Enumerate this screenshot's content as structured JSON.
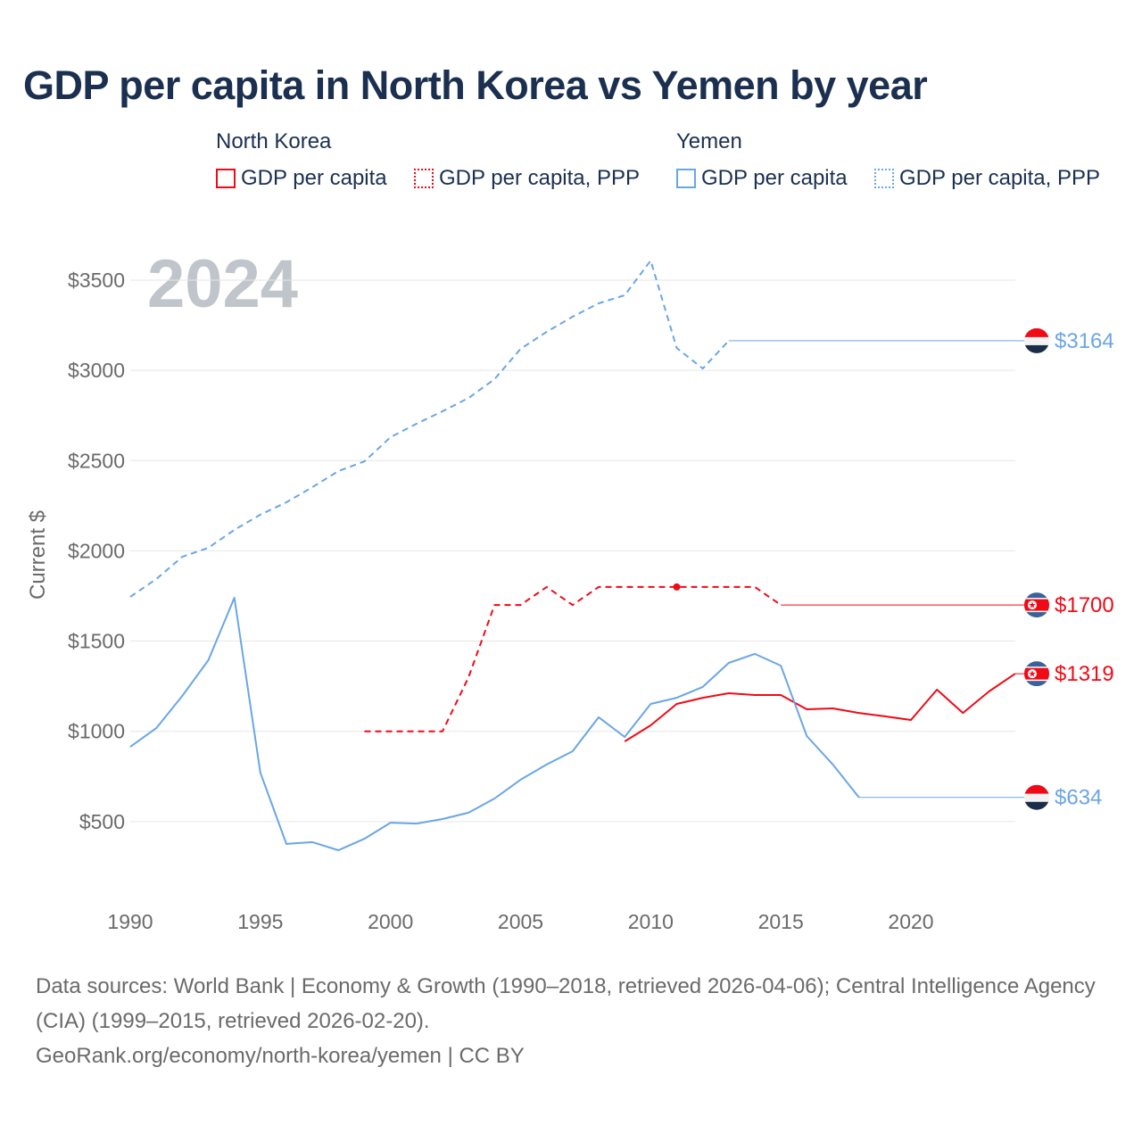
{
  "title": "GDP per capita in North Korea vs Yemen by year",
  "legend": {
    "groups": [
      {
        "name": "North Korea",
        "items": [
          "GDP per capita",
          "GDP per capita, PPP"
        ],
        "color": "#f00a16"
      },
      {
        "name": "Yemen",
        "items": [
          "GDP per capita",
          "GDP per capita, PPP"
        ],
        "color": "#6aa6e6"
      }
    ]
  },
  "chart_data": {
    "type": "line",
    "title": "GDP per capita in North Korea vs Yemen by year",
    "year_watermark": "2024",
    "ylabel": "Current $",
    "xlabel": "",
    "xlim": [
      1990,
      2024
    ],
    "ylim": [
      0,
      3700
    ],
    "x_ticks": [
      "1990",
      "1995",
      "2000",
      "2005",
      "2010",
      "2015",
      "2020"
    ],
    "y_ticks": [
      "$500",
      "$1000",
      "$1500",
      "$2000",
      "$2500",
      "$3000",
      "$3500"
    ],
    "grid": true,
    "series": [
      {
        "name": "Yemen GDP per capita, PPP",
        "country": "Yemen",
        "color": "#6aa6e6",
        "style": "dashed",
        "x": [
          1990,
          1991,
          1992,
          1993,
          1994,
          1995,
          1996,
          1997,
          1998,
          1999,
          2000,
          2001,
          2002,
          2003,
          2004,
          2005,
          2006,
          2007,
          2008,
          2009,
          2010,
          2011,
          2012,
          2013
        ],
        "values": [
          1745,
          1844,
          1967,
          2017,
          2116,
          2200,
          2269,
          2353,
          2442,
          2496,
          2630,
          2704,
          2773,
          2847,
          2951,
          3119,
          3213,
          3297,
          3371,
          3416,
          3608,
          3124,
          3010,
          3164
        ],
        "end_label": "$3164",
        "flag": "yemen"
      },
      {
        "name": "North Korea GDP per capita, PPP",
        "country": "North Korea",
        "color": "#f00a16",
        "style": "dashed",
        "x": [
          1999,
          2000,
          2001,
          2002,
          2003,
          2004,
          2005,
          2006,
          2007,
          2008,
          2009,
          2010,
          2011,
          2012,
          2013,
          2014,
          2015
        ],
        "values": [
          1000,
          1000,
          1000,
          1000,
          1300,
          1700,
          1700,
          1800,
          1700,
          1800,
          1800,
          1800,
          1800,
          1800,
          1800,
          1800,
          1700
        ],
        "marker_at": 2011,
        "end_label": "$1700",
        "flag": "north-korea"
      },
      {
        "name": "North Korea GDP per capita",
        "country": "North Korea",
        "color": "#f00a16",
        "style": "solid",
        "x": [
          2009,
          2010,
          2011,
          2012,
          2013,
          2014,
          2015,
          2016,
          2017,
          2018,
          2019,
          2020,
          2021,
          2022,
          2023,
          2024
        ],
        "values": [
          944,
          1033,
          1152,
          1186,
          1211,
          1201,
          1201,
          1122,
          1127,
          1102,
          1083,
          1063,
          1231,
          1102,
          1221,
          1319
        ],
        "end_label": "$1319",
        "flag": "north-korea"
      },
      {
        "name": "Yemen GDP per capita",
        "country": "Yemen",
        "color": "#6aa6e6",
        "style": "solid",
        "x": [
          1990,
          1991,
          1992,
          1993,
          1994,
          1995,
          1996,
          1997,
          1998,
          1999,
          2000,
          2001,
          2002,
          2003,
          2004,
          2005,
          2006,
          2007,
          2008,
          2009,
          2010,
          2011,
          2012,
          2013,
          2014,
          2015,
          2016,
          2017,
          2018
        ],
        "values": [
          914,
          1018,
          1196,
          1394,
          1740,
          771,
          376,
          386,
          341,
          405,
          494,
          489,
          514,
          549,
          628,
          732,
          816,
          890,
          1078,
          969,
          1152,
          1186,
          1246,
          1379,
          1429,
          1364,
          974,
          816,
          634
        ],
        "end_label": "$634",
        "flag": "yemen"
      }
    ]
  },
  "footer": {
    "sources": "Data sources: World Bank | Economy & Growth (1990–2018, retrieved 2026-04-06); Central Intelligence Agency (CIA) (1999–2015, retrieved 2026-02-20).",
    "credit": "GeoRank.org/economy/north-korea/yemen | CC BY"
  }
}
